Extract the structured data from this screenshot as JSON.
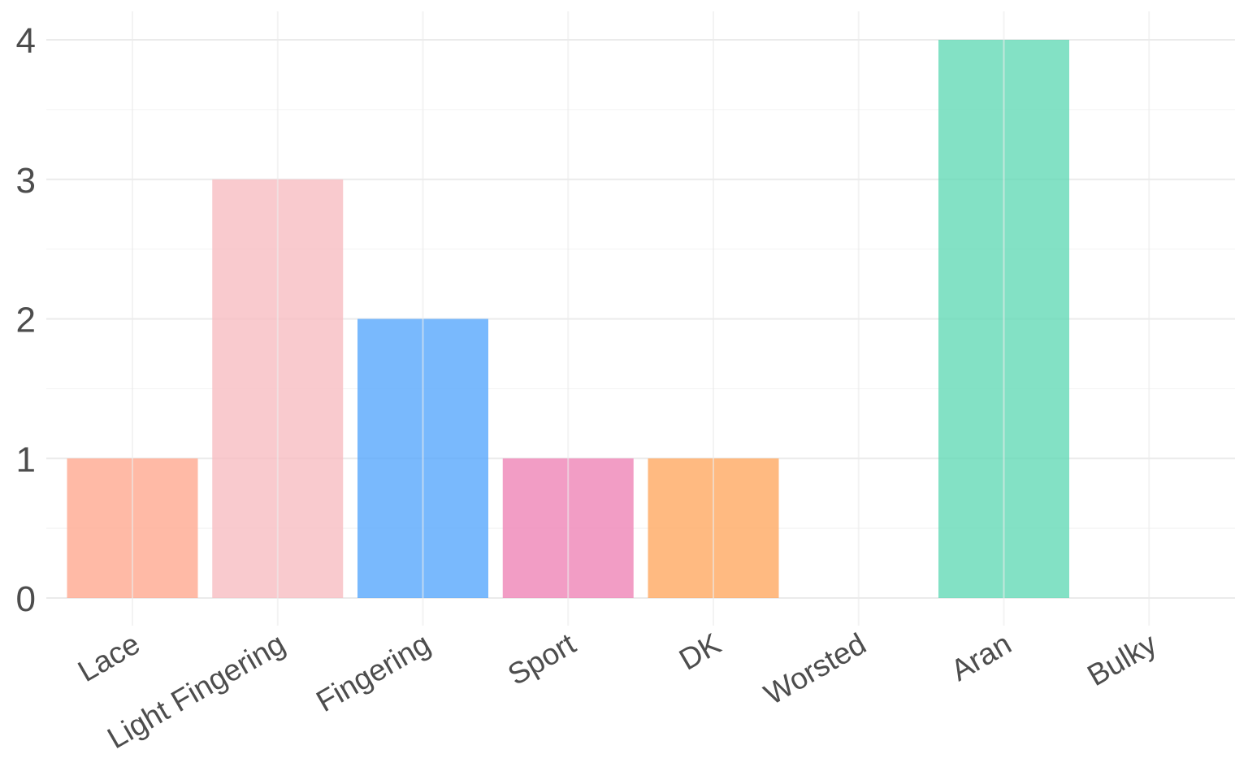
{
  "chart_data": {
    "type": "bar",
    "title": "",
    "xlabel": "",
    "ylabel": "",
    "categories": [
      "Lace",
      "Light Fingering",
      "Fingering",
      "Sport",
      "DK",
      "Worsted",
      "Aran",
      "Bulky"
    ],
    "values": [
      1,
      3,
      2,
      1,
      1,
      0,
      4,
      0
    ],
    "colors": [
      "#FFA990",
      "#F7BDC2",
      "#58A8FC",
      "#EF85B6",
      "#FFA962",
      "#B0B0B0",
      "#64D9B6",
      "#B0B0B0"
    ],
    "ylim": [
      0,
      4
    ],
    "yticks": [
      0,
      1,
      2,
      3,
      4
    ],
    "grid": true,
    "legend": "none",
    "x_tick_rotation_deg": 30
  }
}
